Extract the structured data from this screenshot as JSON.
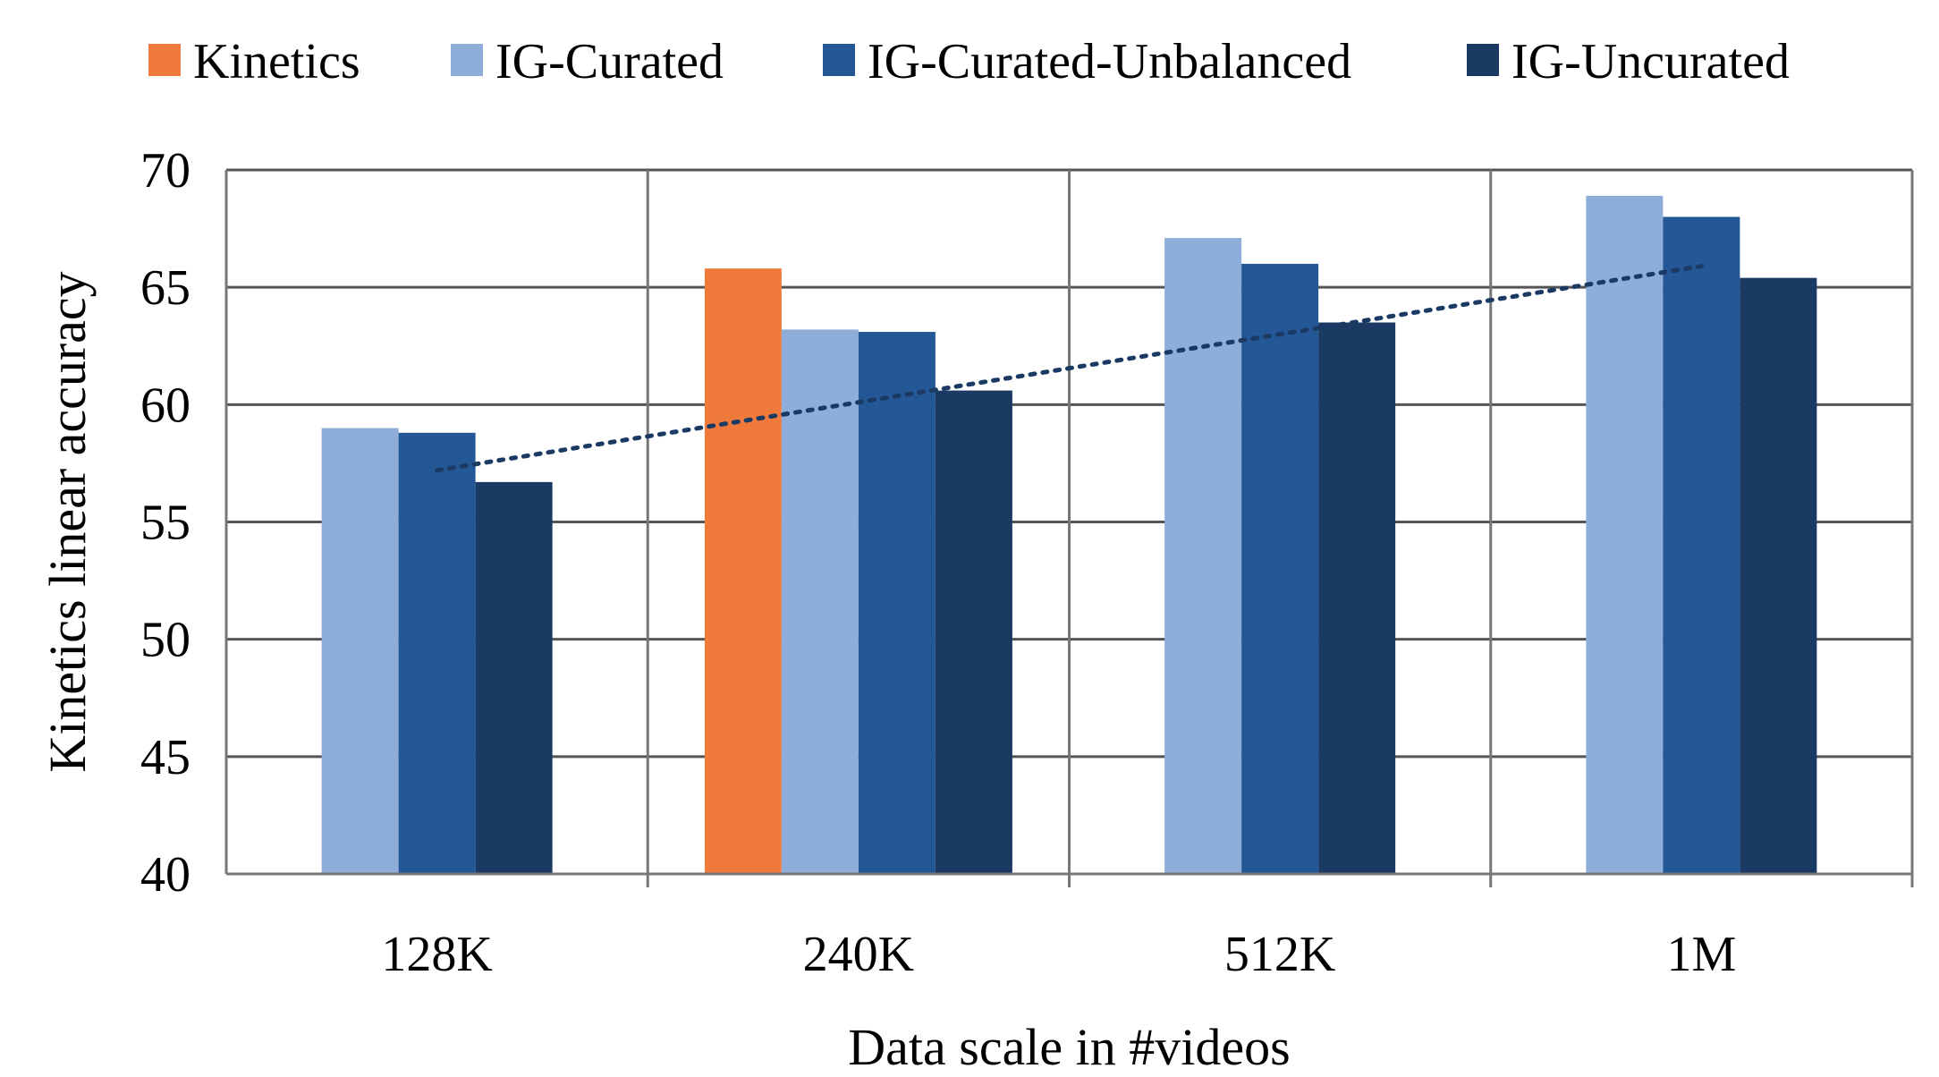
{
  "chart_data": {
    "type": "bar",
    "categories": [
      "128K",
      "240K",
      "512K",
      "1M"
    ],
    "series": [
      {
        "name": "Kinetics",
        "color": "#F07A3C",
        "values": [
          null,
          65.8,
          null,
          null
        ]
      },
      {
        "name": "IG-Curated",
        "color": "#8EADD8",
        "values": [
          59.0,
          63.2,
          67.1,
          68.9
        ]
      },
      {
        "name": "IG-Curated-Unbalanced",
        "color": "#245796",
        "values": [
          58.8,
          63.1,
          66.0,
          68.0
        ]
      },
      {
        "name": "IG-Uncurated",
        "color": "#1B3A63",
        "values": [
          56.7,
          60.6,
          63.5,
          65.4
        ]
      }
    ],
    "trendline": {
      "style": "dotted",
      "color": "#1B3A63",
      "start": 57.2,
      "end": 65.9
    },
    "xlabel": "Data scale in #videos",
    "ylabel": "Kinetics linear accuracy",
    "ylim": [
      40,
      70
    ],
    "yticks": [
      "40",
      "45",
      "50",
      "55",
      "60",
      "65",
      "70"
    ],
    "grid": true,
    "legend_position": "top"
  }
}
